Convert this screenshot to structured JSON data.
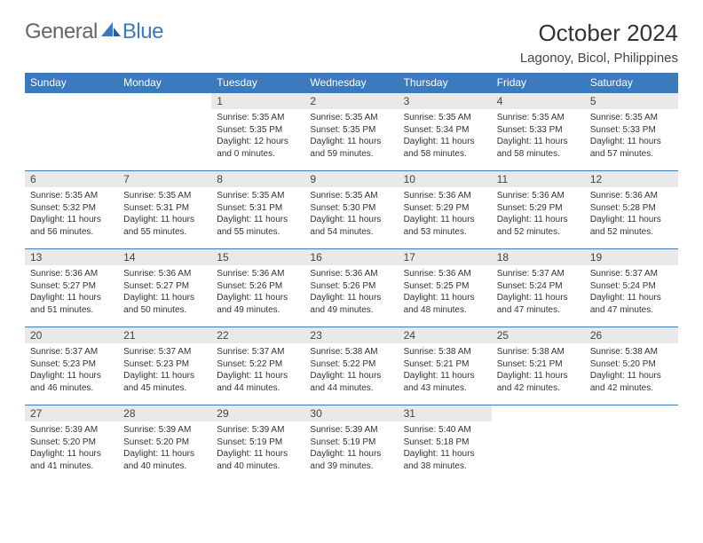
{
  "branding": {
    "text_general": "General",
    "text_blue": "Blue",
    "logo_color": "#3a7abd"
  },
  "title": {
    "month": "October 2024",
    "location": "Lagonoy, Bicol, Philippines"
  },
  "styling": {
    "header_bg": "#3a7abd",
    "header_text": "#ffffff",
    "daynum_bg": "#e9e9e9",
    "row_border": "#3a7abd",
    "body_text": "#333333",
    "font_family": "Arial",
    "page_bg": "#ffffff",
    "title_fontsize": 26,
    "location_fontsize": 15,
    "weekday_fontsize": 12,
    "cell_fontsize": 10
  },
  "weekdays": [
    "Sunday",
    "Monday",
    "Tuesday",
    "Wednesday",
    "Thursday",
    "Friday",
    "Saturday"
  ],
  "weeks": [
    [
      {
        "day": "",
        "sunrise": "",
        "sunset": "",
        "daylight": ""
      },
      {
        "day": "",
        "sunrise": "",
        "sunset": "",
        "daylight": ""
      },
      {
        "day": "1",
        "sunrise": "Sunrise: 5:35 AM",
        "sunset": "Sunset: 5:35 PM",
        "daylight": "Daylight: 12 hours and 0 minutes."
      },
      {
        "day": "2",
        "sunrise": "Sunrise: 5:35 AM",
        "sunset": "Sunset: 5:35 PM",
        "daylight": "Daylight: 11 hours and 59 minutes."
      },
      {
        "day": "3",
        "sunrise": "Sunrise: 5:35 AM",
        "sunset": "Sunset: 5:34 PM",
        "daylight": "Daylight: 11 hours and 58 minutes."
      },
      {
        "day": "4",
        "sunrise": "Sunrise: 5:35 AM",
        "sunset": "Sunset: 5:33 PM",
        "daylight": "Daylight: 11 hours and 58 minutes."
      },
      {
        "day": "5",
        "sunrise": "Sunrise: 5:35 AM",
        "sunset": "Sunset: 5:33 PM",
        "daylight": "Daylight: 11 hours and 57 minutes."
      }
    ],
    [
      {
        "day": "6",
        "sunrise": "Sunrise: 5:35 AM",
        "sunset": "Sunset: 5:32 PM",
        "daylight": "Daylight: 11 hours and 56 minutes."
      },
      {
        "day": "7",
        "sunrise": "Sunrise: 5:35 AM",
        "sunset": "Sunset: 5:31 PM",
        "daylight": "Daylight: 11 hours and 55 minutes."
      },
      {
        "day": "8",
        "sunrise": "Sunrise: 5:35 AM",
        "sunset": "Sunset: 5:31 PM",
        "daylight": "Daylight: 11 hours and 55 minutes."
      },
      {
        "day": "9",
        "sunrise": "Sunrise: 5:35 AM",
        "sunset": "Sunset: 5:30 PM",
        "daylight": "Daylight: 11 hours and 54 minutes."
      },
      {
        "day": "10",
        "sunrise": "Sunrise: 5:36 AM",
        "sunset": "Sunset: 5:29 PM",
        "daylight": "Daylight: 11 hours and 53 minutes."
      },
      {
        "day": "11",
        "sunrise": "Sunrise: 5:36 AM",
        "sunset": "Sunset: 5:29 PM",
        "daylight": "Daylight: 11 hours and 52 minutes."
      },
      {
        "day": "12",
        "sunrise": "Sunrise: 5:36 AM",
        "sunset": "Sunset: 5:28 PM",
        "daylight": "Daylight: 11 hours and 52 minutes."
      }
    ],
    [
      {
        "day": "13",
        "sunrise": "Sunrise: 5:36 AM",
        "sunset": "Sunset: 5:27 PM",
        "daylight": "Daylight: 11 hours and 51 minutes."
      },
      {
        "day": "14",
        "sunrise": "Sunrise: 5:36 AM",
        "sunset": "Sunset: 5:27 PM",
        "daylight": "Daylight: 11 hours and 50 minutes."
      },
      {
        "day": "15",
        "sunrise": "Sunrise: 5:36 AM",
        "sunset": "Sunset: 5:26 PM",
        "daylight": "Daylight: 11 hours and 49 minutes."
      },
      {
        "day": "16",
        "sunrise": "Sunrise: 5:36 AM",
        "sunset": "Sunset: 5:26 PM",
        "daylight": "Daylight: 11 hours and 49 minutes."
      },
      {
        "day": "17",
        "sunrise": "Sunrise: 5:36 AM",
        "sunset": "Sunset: 5:25 PM",
        "daylight": "Daylight: 11 hours and 48 minutes."
      },
      {
        "day": "18",
        "sunrise": "Sunrise: 5:37 AM",
        "sunset": "Sunset: 5:24 PM",
        "daylight": "Daylight: 11 hours and 47 minutes."
      },
      {
        "day": "19",
        "sunrise": "Sunrise: 5:37 AM",
        "sunset": "Sunset: 5:24 PM",
        "daylight": "Daylight: 11 hours and 47 minutes."
      }
    ],
    [
      {
        "day": "20",
        "sunrise": "Sunrise: 5:37 AM",
        "sunset": "Sunset: 5:23 PM",
        "daylight": "Daylight: 11 hours and 46 minutes."
      },
      {
        "day": "21",
        "sunrise": "Sunrise: 5:37 AM",
        "sunset": "Sunset: 5:23 PM",
        "daylight": "Daylight: 11 hours and 45 minutes."
      },
      {
        "day": "22",
        "sunrise": "Sunrise: 5:37 AM",
        "sunset": "Sunset: 5:22 PM",
        "daylight": "Daylight: 11 hours and 44 minutes."
      },
      {
        "day": "23",
        "sunrise": "Sunrise: 5:38 AM",
        "sunset": "Sunset: 5:22 PM",
        "daylight": "Daylight: 11 hours and 44 minutes."
      },
      {
        "day": "24",
        "sunrise": "Sunrise: 5:38 AM",
        "sunset": "Sunset: 5:21 PM",
        "daylight": "Daylight: 11 hours and 43 minutes."
      },
      {
        "day": "25",
        "sunrise": "Sunrise: 5:38 AM",
        "sunset": "Sunset: 5:21 PM",
        "daylight": "Daylight: 11 hours and 42 minutes."
      },
      {
        "day": "26",
        "sunrise": "Sunrise: 5:38 AM",
        "sunset": "Sunset: 5:20 PM",
        "daylight": "Daylight: 11 hours and 42 minutes."
      }
    ],
    [
      {
        "day": "27",
        "sunrise": "Sunrise: 5:39 AM",
        "sunset": "Sunset: 5:20 PM",
        "daylight": "Daylight: 11 hours and 41 minutes."
      },
      {
        "day": "28",
        "sunrise": "Sunrise: 5:39 AM",
        "sunset": "Sunset: 5:20 PM",
        "daylight": "Daylight: 11 hours and 40 minutes."
      },
      {
        "day": "29",
        "sunrise": "Sunrise: 5:39 AM",
        "sunset": "Sunset: 5:19 PM",
        "daylight": "Daylight: 11 hours and 40 minutes."
      },
      {
        "day": "30",
        "sunrise": "Sunrise: 5:39 AM",
        "sunset": "Sunset: 5:19 PM",
        "daylight": "Daylight: 11 hours and 39 minutes."
      },
      {
        "day": "31",
        "sunrise": "Sunrise: 5:40 AM",
        "sunset": "Sunset: 5:18 PM",
        "daylight": "Daylight: 11 hours and 38 minutes."
      },
      {
        "day": "",
        "sunrise": "",
        "sunset": "",
        "daylight": ""
      },
      {
        "day": "",
        "sunrise": "",
        "sunset": "",
        "daylight": ""
      }
    ]
  ]
}
